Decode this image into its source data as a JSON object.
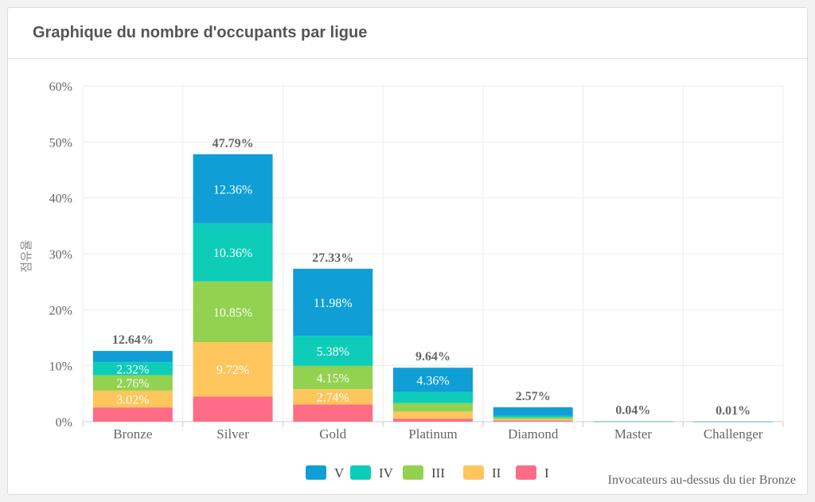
{
  "panel": {
    "title": "Graphique du nombre d'occupants par ligue"
  },
  "chart_data": {
    "type": "bar",
    "stacked": true,
    "title": "Graphique du nombre d'occupants par ligue",
    "xlabel": "",
    "ylabel": "점유율",
    "ylim": [
      0,
      60
    ],
    "yticks": [
      "0%",
      "10%",
      "20%",
      "30%",
      "40%",
      "50%",
      "60%"
    ],
    "grid": true,
    "categories": [
      "Bronze",
      "Silver",
      "Gold",
      "Platinum",
      "Diamond",
      "Master",
      "Challenger"
    ],
    "totals": [
      12.64,
      47.79,
      27.33,
      9.64,
      2.57,
      0.04,
      0.01
    ],
    "total_labels": [
      "12.64%",
      "47.79%",
      "27.33%",
      "9.64%",
      "2.57%",
      "0.04%",
      "0.01%"
    ],
    "series": [
      {
        "name": "I",
        "color": "#fe6c86",
        "values": [
          2.54,
          4.5,
          3.08,
          0.5,
          0.2,
          0.02,
          0.0
        ],
        "labels": [
          "",
          "",
          "",
          "",
          "",
          "",
          ""
        ]
      },
      {
        "name": "II",
        "color": "#fec65c",
        "values": [
          3.02,
          9.72,
          2.74,
          1.3,
          0.25,
          0.01,
          0.0
        ],
        "labels": [
          "3.02%",
          "9.72%",
          "2.74%",
          "",
          "",
          "",
          ""
        ]
      },
      {
        "name": "III",
        "color": "#92d250",
        "values": [
          2.76,
          10.85,
          4.15,
          1.5,
          0.3,
          0.0,
          0.0
        ],
        "labels": [
          "2.76%",
          "10.85%",
          "4.15%",
          "",
          "",
          "",
          ""
        ]
      },
      {
        "name": "IV",
        "color": "#0dcdb8",
        "values": [
          2.32,
          10.36,
          5.38,
          1.98,
          0.32,
          0.0,
          0.0
        ],
        "labels": [
          "2.32%",
          "10.36%",
          "5.38%",
          "",
          "",
          "",
          ""
        ]
      },
      {
        "name": "V",
        "color": "#0f9fd6",
        "values": [
          2.0,
          12.36,
          11.98,
          4.36,
          1.5,
          0.01,
          0.01
        ],
        "labels": [
          "",
          "12.36%",
          "11.98%",
          "4.36%",
          "",
          "",
          ""
        ]
      }
    ],
    "legend_order": [
      "V",
      "IV",
      "III",
      "II",
      "I"
    ],
    "legend_position": "bottom-center",
    "footnote": "Invocateurs au-dessus du tier Bronze"
  }
}
